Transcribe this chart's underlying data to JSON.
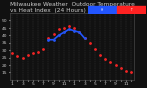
{
  "background_color": "#111111",
  "plot_bg_color": "#111111",
  "text_color": "#cccccc",
  "grid_color": "#555555",
  "ylim": [
    10,
    55
  ],
  "yticks": [
    15,
    20,
    25,
    30,
    35,
    40,
    45,
    50
  ],
  "temp_data": [
    [
      1,
      28
    ],
    [
      2,
      26
    ],
    [
      3,
      25
    ],
    [
      4,
      27
    ],
    [
      5,
      28
    ],
    [
      6,
      29
    ],
    [
      7,
      31
    ],
    [
      8,
      38
    ],
    [
      9,
      41
    ],
    [
      10,
      44
    ],
    [
      11,
      45
    ],
    [
      12,
      46
    ],
    [
      13,
      45
    ],
    [
      14,
      42
    ],
    [
      15,
      38
    ],
    [
      16,
      35
    ],
    [
      17,
      31
    ],
    [
      18,
      27
    ],
    [
      19,
      24
    ],
    [
      20,
      22
    ],
    [
      21,
      20
    ],
    [
      22,
      18
    ],
    [
      23,
      16
    ],
    [
      24,
      15
    ]
  ],
  "heat_data": [
    [
      8,
      37
    ],
    [
      9,
      37
    ],
    [
      10,
      40
    ],
    [
      11,
      42
    ],
    [
      12,
      44
    ],
    [
      13,
      43
    ],
    [
      14,
      42
    ],
    [
      15,
      38
    ]
  ],
  "temp_color": "#ff2222",
  "heat_color": "#2255ff",
  "title_fontsize": 4.2,
  "tick_fontsize": 3.2,
  "xtick_vals": [
    1,
    2,
    3,
    4,
    5,
    6,
    7,
    8,
    9,
    10,
    11,
    12,
    13,
    14,
    15,
    16,
    17,
    18,
    19,
    20,
    21,
    22,
    23,
    24
  ],
  "xtick_labels": [
    "1",
    "",
    "3",
    "",
    "5",
    "",
    "7",
    "",
    "9",
    "",
    "11",
    "",
    "1",
    "",
    "3",
    "",
    "5",
    "",
    "7",
    "",
    "9",
    "",
    "11",
    ""
  ]
}
